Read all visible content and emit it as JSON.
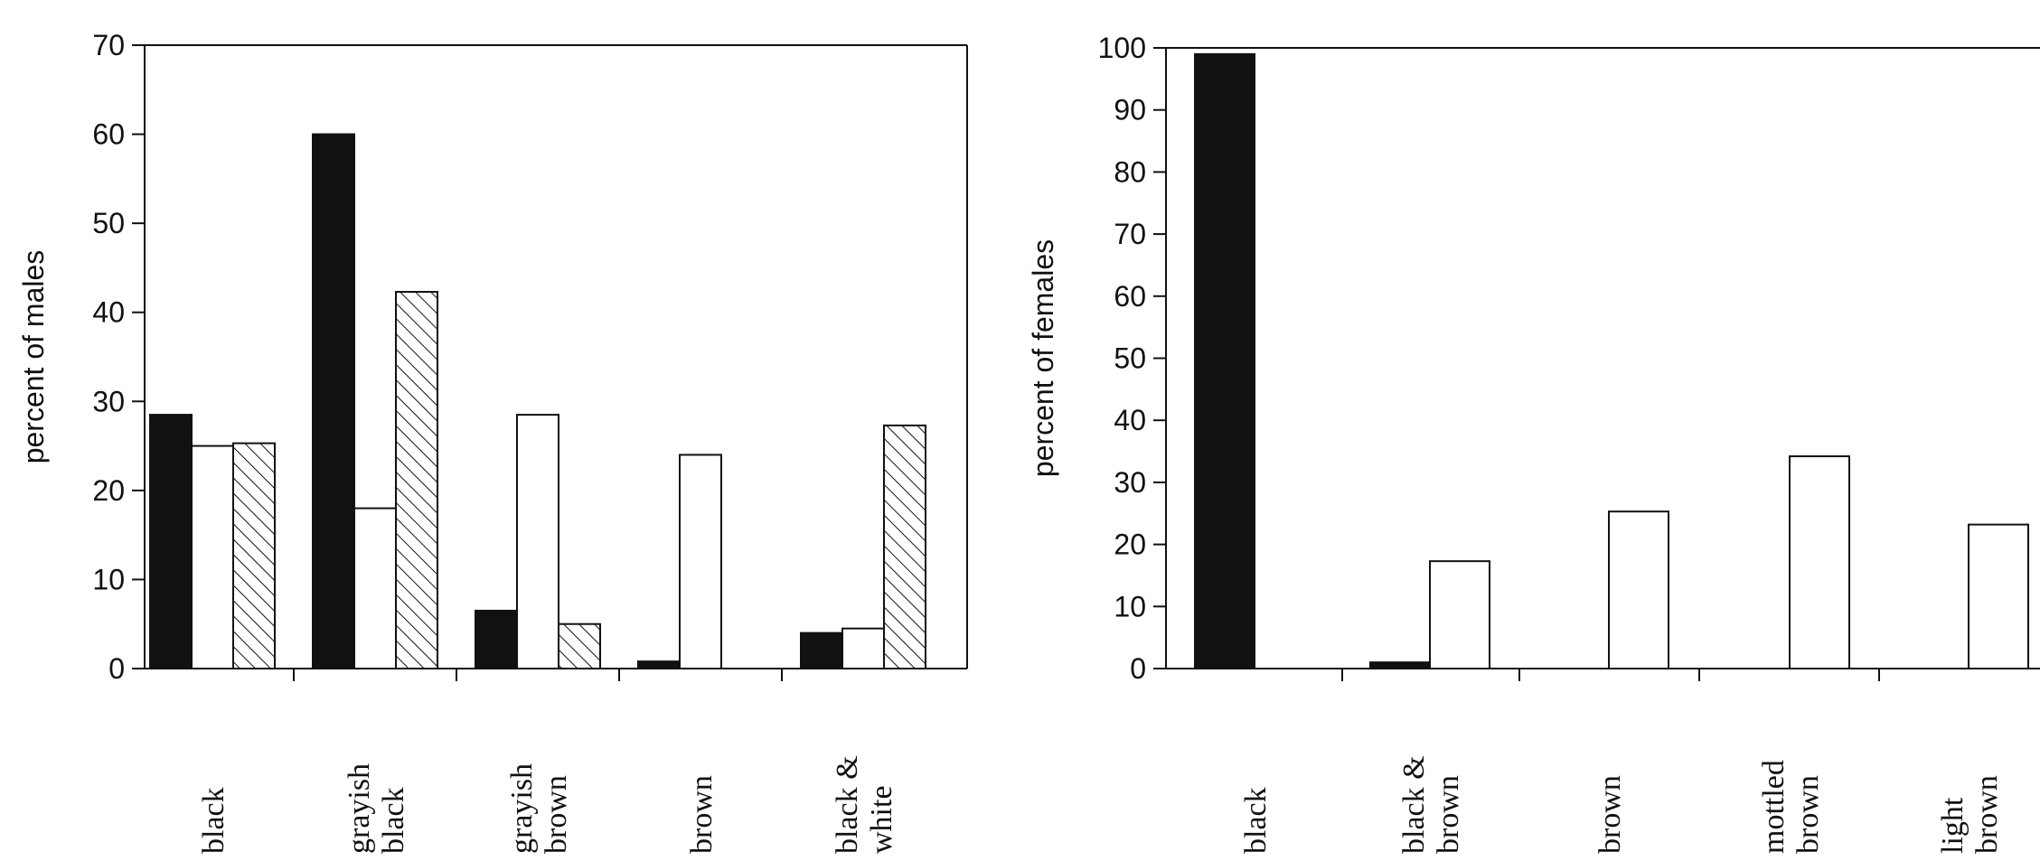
{
  "colors": {
    "background": "#ffffff",
    "axis": "#111111",
    "bar_solid": "#111111",
    "bar_open": "#ffffff",
    "bar_stroke": "#111111",
    "hatch": "#111111"
  },
  "chart_data": [
    {
      "type": "bar",
      "ylabel": "percent of males",
      "ylim": [
        0,
        70
      ],
      "yticks": [
        0,
        10,
        20,
        30,
        40,
        50,
        60,
        70
      ],
      "grid": false,
      "categories": [
        [
          "black"
        ],
        [
          "grayish",
          "black"
        ],
        [
          "grayish",
          "brown"
        ],
        [
          "brown"
        ],
        [
          "black &",
          "white"
        ]
      ],
      "series": [
        {
          "fill": "solid",
          "values": [
            28.5,
            60,
            6.5,
            0.8,
            4
          ]
        },
        {
          "fill": "open",
          "values": [
            25,
            18,
            28.5,
            24,
            4.5
          ]
        },
        {
          "fill": "hatched",
          "values": [
            25.3,
            42.3,
            5,
            0,
            27.3
          ]
        }
      ]
    },
    {
      "type": "bar",
      "ylabel": "percent of females",
      "ylim": [
        0,
        100
      ],
      "yticks": [
        0,
        10,
        20,
        30,
        40,
        50,
        60,
        70,
        80,
        90,
        100
      ],
      "grid": false,
      "categories": [
        [
          "black"
        ],
        [
          "black &",
          "brown"
        ],
        [
          "brown"
        ],
        [
          "mottled",
          "brown"
        ],
        [
          "light",
          "brown"
        ]
      ],
      "series": [
        {
          "fill": "solid",
          "values": [
            99,
            1,
            0,
            0,
            0
          ]
        },
        {
          "fill": "open",
          "values": [
            0,
            17.3,
            25.3,
            34.2,
            23.2
          ]
        }
      ]
    }
  ]
}
